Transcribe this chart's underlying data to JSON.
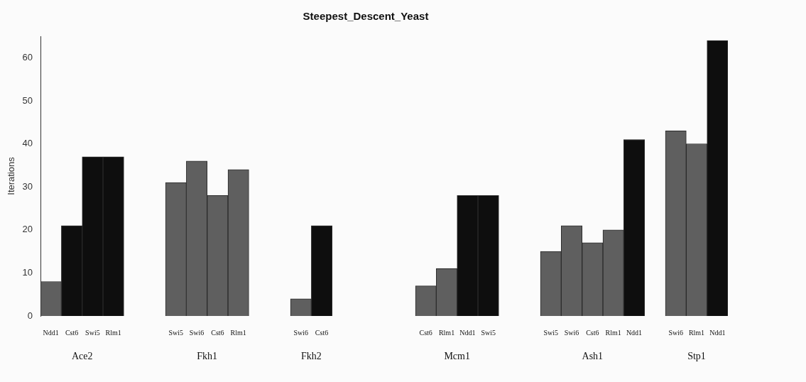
{
  "chart_data": {
    "type": "bar",
    "title": "Steepest_Descent_Yeast",
    "ylabel": "Iterations",
    "categories": [
      "Ndd1",
      "Cst6",
      "Swi5",
      "Rlm1",
      null,
      null,
      "Swi5",
      "Swi6",
      "Cst6",
      "Rlm1",
      null,
      null,
      "Swi6",
      "Cst6",
      null,
      null,
      null,
      null,
      "Cst6",
      "Rlm1",
      "Ndd1",
      "Swi5",
      null,
      null,
      "Swi5",
      "Swi6",
      "Cst6",
      "Rlm1",
      "Ndd1",
      null,
      "Swi6",
      "Rlm1",
      "Ndd1"
    ],
    "values": [
      8,
      21,
      37,
      37,
      null,
      null,
      31,
      36,
      28,
      34,
      null,
      null,
      4,
      21,
      null,
      null,
      null,
      null,
      7,
      11,
      28,
      28,
      null,
      null,
      15,
      21,
      17,
      20,
      41,
      null,
      43,
      40,
      64
    ],
    "colors": [
      "#5f5f5f",
      "#0e0e0e",
      "#0e0e0e",
      "#0e0e0e",
      null,
      null,
      "#5f5f5f",
      "#5f5f5f",
      "#5f5f5f",
      "#5f5f5f",
      null,
      null,
      "#5f5f5f",
      "#0e0e0e",
      null,
      null,
      null,
      null,
      "#5f5f5f",
      "#5f5f5f",
      "#0e0e0e",
      "#0e0e0e",
      null,
      null,
      "#5f5f5f",
      "#5f5f5f",
      "#5f5f5f",
      "#5f5f5f",
      "#0e0e0e",
      null,
      "#5f5f5f",
      "#5f5f5f",
      "#0e0e0e"
    ],
    "annotations": [
      "Ace2",
      "Fkh1",
      "Fkh2",
      "Mcm1",
      "Ash1",
      "Stp1"
    ],
    "ylim": [
      0,
      65
    ],
    "yticks": [
      0,
      10,
      20,
      30,
      40,
      50,
      60
    ],
    "grid": false,
    "legend": false
  }
}
